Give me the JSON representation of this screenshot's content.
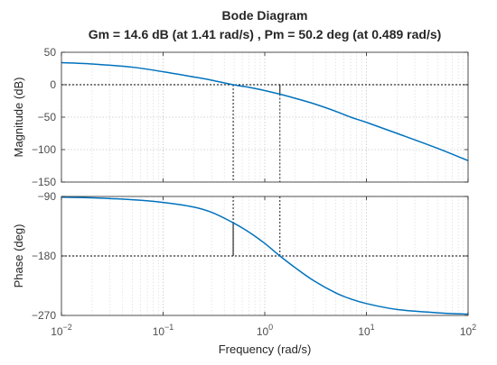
{
  "chart_data": {
    "type": "line",
    "title": "Bode Diagram",
    "subtitle": "Gm = 14.6 dB (at 1.41 rad/s) ,  Pm = 50.2 deg (at 0.489 rad/s)",
    "xlabel": "Frequency  (rad/s)",
    "xscale": "log",
    "xlim": [
      0.01,
      100
    ],
    "grid": true,
    "line_color": "#0072BD",
    "margin_line_color": "#000000",
    "x_ticks": [
      {
        "value": 0.01,
        "base": "10",
        "exp": "-2"
      },
      {
        "value": 0.1,
        "base": "10",
        "exp": "-1"
      },
      {
        "value": 1,
        "base": "10",
        "exp": "0"
      },
      {
        "value": 10,
        "base": "10",
        "exp": "1"
      },
      {
        "value": 100,
        "base": "10",
        "exp": "2"
      }
    ],
    "magnitude": {
      "ylabel": "Magnitude (dB)",
      "ylim": [
        -150,
        50
      ],
      "ticks": [
        50,
        0,
        -50,
        -100,
        -150
      ],
      "series": [
        {
          "x": [
            0.01,
            0.02,
            0.05,
            0.1,
            0.2,
            0.3,
            0.489,
            0.7,
            1,
            1.41,
            2,
            3,
            5,
            7,
            10,
            20,
            50,
            100
          ],
          "y": [
            34,
            32,
            27,
            20,
            12,
            7,
            0,
            -4,
            -9,
            -14.6,
            -21,
            -29,
            -41,
            -50,
            -58,
            -75,
            -98,
            -117
          ]
        }
      ]
    },
    "phase": {
      "ylabel": "Phase (deg)",
      "ylim": [
        -270,
        -90
      ],
      "ticks": [
        -90,
        -180,
        -270
      ],
      "series": [
        {
          "x": [
            0.01,
            0.02,
            0.05,
            0.1,
            0.2,
            0.3,
            0.489,
            0.7,
            1,
            1.41,
            2,
            3,
            5,
            7,
            10,
            20,
            50,
            100
          ],
          "y": [
            -91,
            -92,
            -95,
            -99,
            -106,
            -114,
            -129.8,
            -144,
            -161,
            -180,
            -198,
            -217,
            -236,
            -245,
            -252,
            -261,
            -266,
            -268
          ]
        }
      ]
    },
    "gain_margin": {
      "value_db": 14.6,
      "frequency": 1.41
    },
    "phase_margin": {
      "value_deg": 50.2,
      "frequency": 0.489
    }
  }
}
